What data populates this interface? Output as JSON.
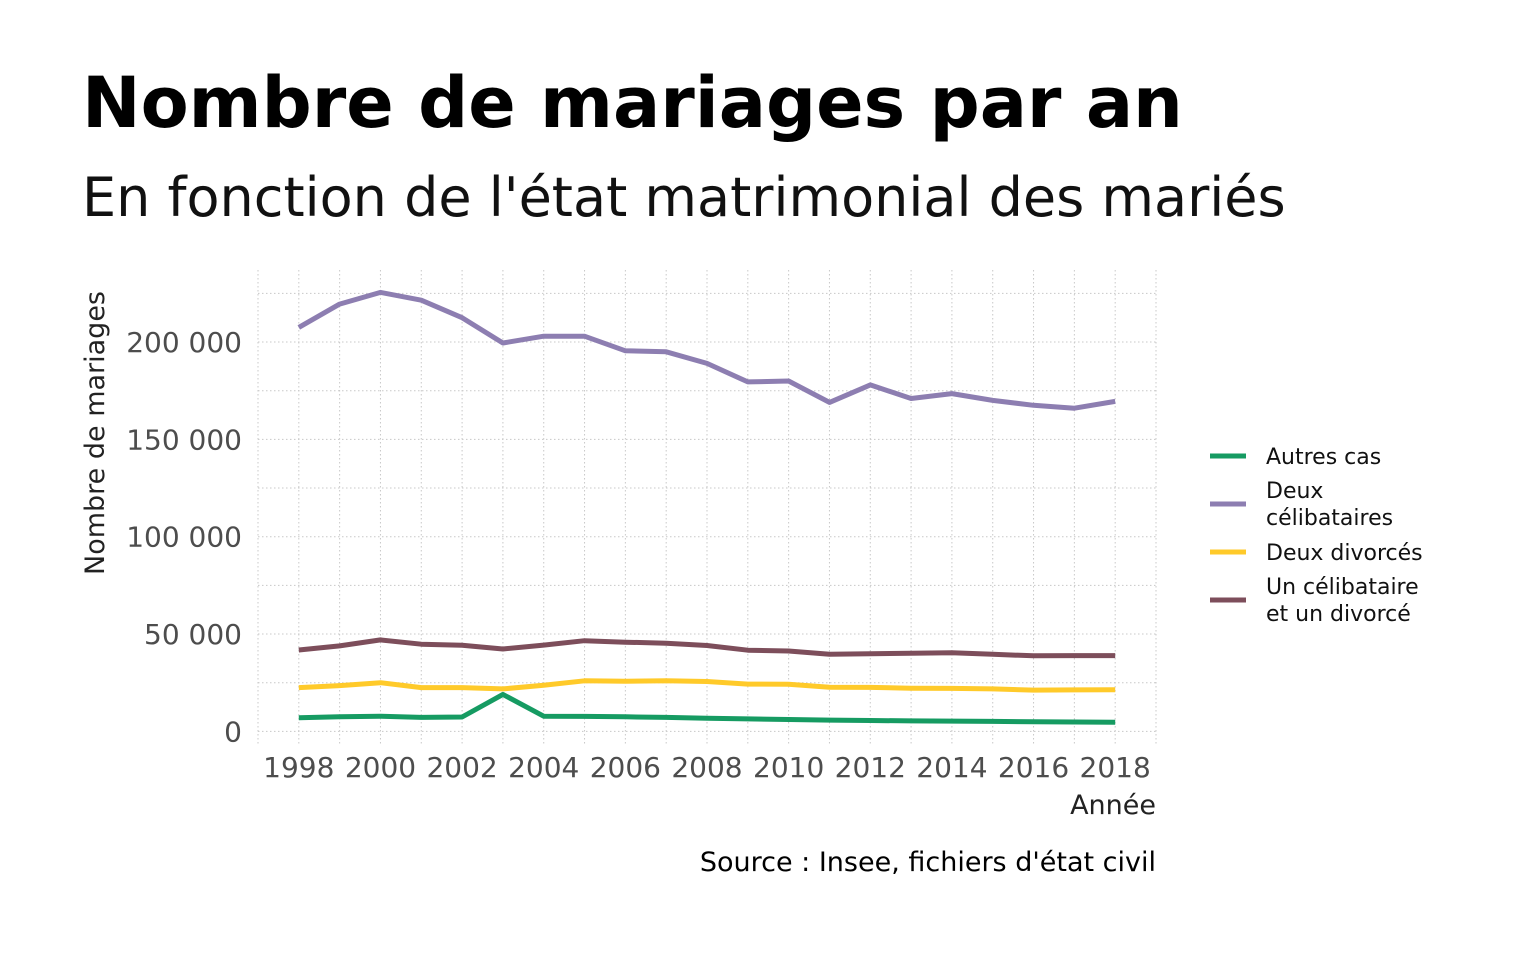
{
  "title": "Nombre de mariages par an",
  "subtitle": "En fonction de l'état matrimonial des mariés",
  "source": "Source : Insee, fichiers d'état civil",
  "chart_data": {
    "type": "line",
    "xlabel": "Année",
    "ylabel": "Nombre de mariages",
    "x": [
      1998,
      1999,
      2000,
      2001,
      2002,
      2003,
      2004,
      2005,
      2006,
      2007,
      2008,
      2009,
      2010,
      2011,
      2012,
      2013,
      2014,
      2015,
      2016,
      2017,
      2018
    ],
    "xlim": [
      1997,
      2019
    ],
    "ylim": [
      -7000,
      237000
    ],
    "x_ticks": [
      1998,
      2000,
      2002,
      2004,
      2006,
      2008,
      2010,
      2012,
      2014,
      2016,
      2018
    ],
    "x_tick_labels": [
      "1998",
      "2000",
      "2002",
      "2004",
      "2006",
      "2008",
      "2010",
      "2012",
      "2014",
      "2016",
      "2018"
    ],
    "y_ticks": [
      0,
      50000,
      100000,
      150000,
      200000
    ],
    "y_tick_labels": [
      "0",
      "50 000",
      "100 000",
      "150 000",
      "200 000"
    ],
    "y_minor_ticks": [
      25000,
      75000,
      125000,
      175000,
      225000
    ],
    "grid": true,
    "legend_position": "right",
    "series": [
      {
        "name": "Autres cas",
        "color": "#169b62",
        "values": [
          7000,
          7500,
          7800,
          7200,
          7400,
          19000,
          7800,
          7700,
          7500,
          7200,
          6700,
          6400,
          6100,
          5800,
          5600,
          5400,
          5300,
          5100,
          4900,
          4800,
          4700
        ]
      },
      {
        "name": "Deux célibataires",
        "color": "#8d7eb1",
        "values": [
          207500,
          219500,
          225500,
          221500,
          212500,
          199500,
          203000,
          203000,
          195500,
          195000,
          189000,
          179500,
          180000,
          169000,
          178000,
          171000,
          173500,
          170000,
          167500,
          166000,
          169500
        ]
      },
      {
        "name": "Deux divorcés",
        "color": "#ffca2a",
        "values": [
          22500,
          23500,
          25000,
          22500,
          22500,
          21800,
          23700,
          26000,
          25700,
          26000,
          25600,
          24300,
          24200,
          22700,
          22600,
          22200,
          22100,
          21800,
          21200,
          21300,
          21400
        ]
      },
      {
        "name": "Un célibataire et un divorcé",
        "color": "#7d4e5b",
        "legend_lines": [
          "Un célibataire",
          "et un divorcé"
        ],
        "values": [
          41800,
          43900,
          47000,
          44800,
          44200,
          42300,
          44300,
          46600,
          45800,
          45300,
          44100,
          41700,
          41300,
          39600,
          39900,
          40100,
          40400,
          39600,
          38800,
          38900,
          38900
        ]
      }
    ],
    "legend_lines": [
      [
        "Autres cas"
      ],
      [
        "Deux",
        "célibataires"
      ],
      [
        "Deux divorcés"
      ],
      [
        "Un célibataire",
        "et un divorcé"
      ]
    ]
  }
}
